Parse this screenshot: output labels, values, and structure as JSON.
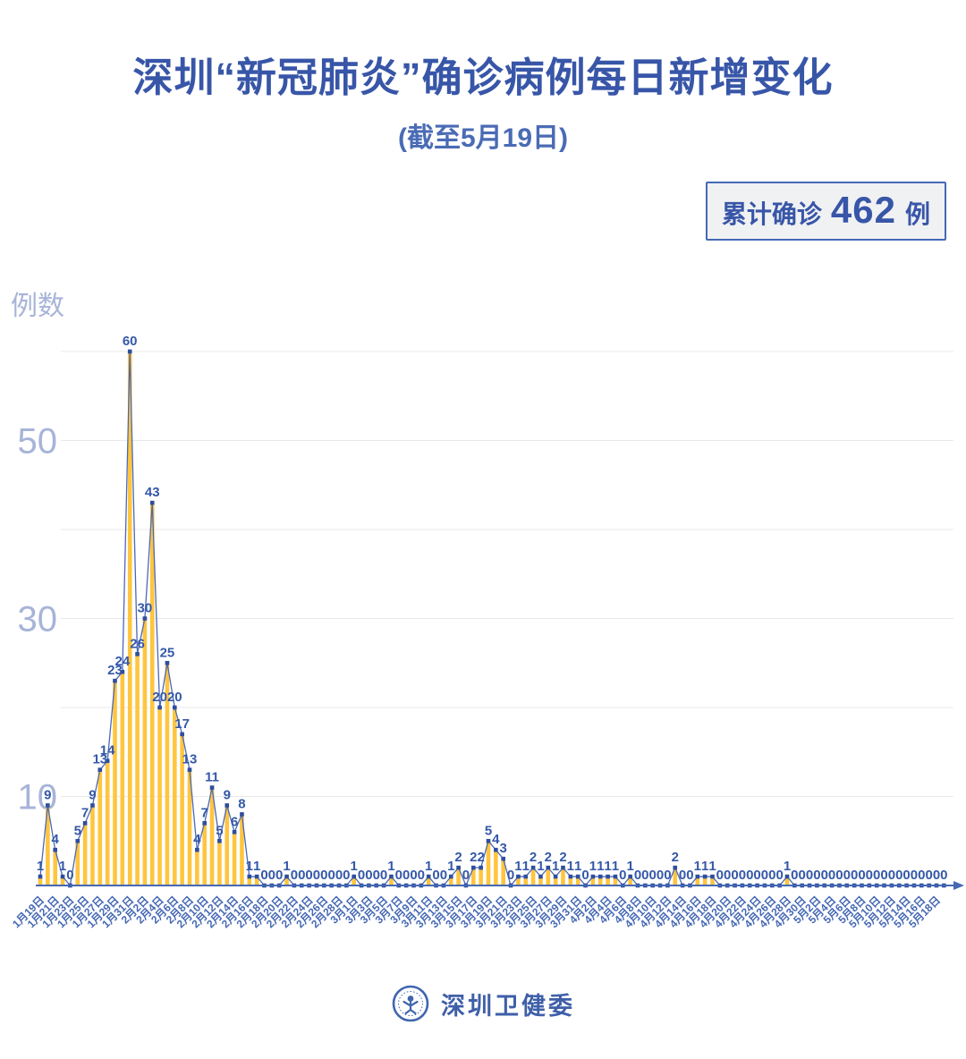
{
  "title": "深圳“新冠肺炎”确诊病例每日新增变化",
  "subtitle": "(截至5月19日)",
  "summary_badge": {
    "label": "累计确诊",
    "value": "462",
    "unit": "例"
  },
  "y_axis_title": "例数",
  "footer": {
    "org_name": "深圳卫健委",
    "logo": "shenzhen-health-commission-logo"
  },
  "colors": {
    "title_blue": "#3856a8",
    "accent_blue": "#4568b4",
    "line_blue": "#4a69b8",
    "dot_blue": "#2e4e9d",
    "value_label_blue": "#3558a8",
    "bar_yellow": "#ffc53e",
    "axis_tick_light_blue": "#a7b4d8",
    "gridline_gray": "#e9e9e9",
    "badge_bg": "#f0f1f2"
  },
  "chart_data": {
    "type": "bar",
    "line_overlay": true,
    "title": "深圳“新冠肺炎”确诊病例每日新增变化",
    "subtitle": "(截至5月19日)",
    "xlabel": "",
    "ylabel": "例数",
    "ylim": [
      0,
      60
    ],
    "y_gridlines": [
      10,
      20,
      30,
      40,
      50,
      60
    ],
    "y_ticks_labeled": [
      10,
      30,
      50
    ],
    "x_tick_interval": 2,
    "x_axis_arrow": true,
    "grid": true,
    "legend_position": "none",
    "x": [
      "1月19日",
      "1月20日",
      "1月21日",
      "1月22日",
      "1月23日",
      "1月24日",
      "1月25日",
      "1月26日",
      "1月27日",
      "1月28日",
      "1月29日",
      "1月30日",
      "1月31日",
      "2月1日",
      "2月2日",
      "2月3日",
      "2月4日",
      "2月5日",
      "2月6日",
      "2月7日",
      "2月8日",
      "2月9日",
      "2月10日",
      "2月11日",
      "2月12日",
      "2月13日",
      "2月14日",
      "2月15日",
      "2月16日",
      "2月17日",
      "2月18日",
      "2月19日",
      "2月20日",
      "2月21日",
      "2月22日",
      "2月23日",
      "2月24日",
      "2月25日",
      "2月26日",
      "2月27日",
      "2月28日",
      "2月29日",
      "3月1日",
      "3月2日",
      "3月3日",
      "3月4日",
      "3月5日",
      "3月6日",
      "3月7日",
      "3月8日",
      "3月9日",
      "3月10日",
      "3月11日",
      "3月12日",
      "3月13日",
      "3月14日",
      "3月15日",
      "3月16日",
      "3月17日",
      "3月18日",
      "3月19日",
      "3月20日",
      "3月21日",
      "3月22日",
      "3月23日",
      "3月24日",
      "3月25日",
      "3月26日",
      "3月27日",
      "3月28日",
      "3月29日",
      "3月30日",
      "3月31日",
      "4月1日",
      "4月2日",
      "4月3日",
      "4月4日",
      "4月5日",
      "4月6日",
      "4月7日",
      "4月8日",
      "4月9日",
      "4月10日",
      "4月11日",
      "4月12日",
      "4月13日",
      "4月14日",
      "4月15日",
      "4月16日",
      "4月17日",
      "4月18日",
      "4月19日",
      "4月20日",
      "4月21日",
      "4月22日",
      "4月23日",
      "4月24日",
      "4月25日",
      "4月26日",
      "4月27日",
      "4月28日",
      "4月29日",
      "4月30日",
      "5月1日",
      "5月2日",
      "5月3日",
      "5月4日",
      "5月5日",
      "5月6日",
      "5月7日",
      "5月8日",
      "5月9日",
      "5月10日",
      "5月11日",
      "5月12日",
      "5月13日",
      "5月14日",
      "5月15日",
      "5月16日",
      "5月17日",
      "5月18日",
      "5月19日"
    ],
    "values": [
      1,
      9,
      4,
      1,
      0,
      5,
      7,
      9,
      13,
      14,
      23,
      24,
      60,
      26,
      30,
      43,
      20,
      25,
      20,
      17,
      13,
      4,
      7,
      11,
      5,
      9,
      6,
      8,
      1,
      1,
      0,
      0,
      0,
      1,
      0,
      0,
      0,
      0,
      0,
      0,
      0,
      0,
      1,
      0,
      0,
      0,
      0,
      1,
      0,
      0,
      0,
      0,
      1,
      0,
      0,
      1,
      2,
      0,
      2,
      2,
      5,
      4,
      3,
      0,
      1,
      1,
      2,
      1,
      2,
      1,
      2,
      1,
      1,
      0,
      1,
      1,
      1,
      1,
      0,
      1,
      0,
      0,
      0,
      0,
      0,
      2,
      0,
      0,
      1,
      1,
      1,
      0,
      0,
      0,
      0,
      0,
      0,
      0,
      0,
      0,
      1,
      0,
      0,
      0,
      0,
      0,
      0,
      0,
      0,
      0,
      0,
      0,
      0,
      0,
      0,
      0,
      0,
      0,
      0,
      0,
      0,
      0
    ]
  }
}
